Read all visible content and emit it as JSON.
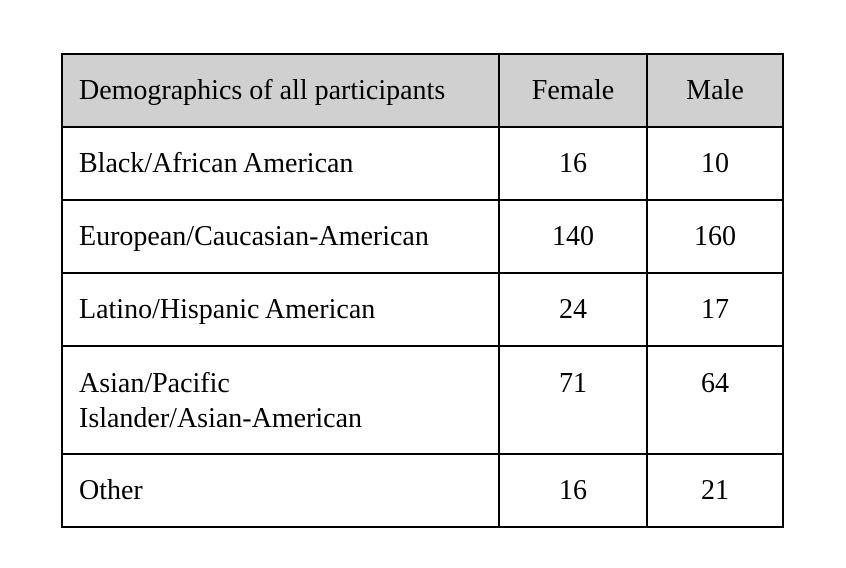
{
  "table": {
    "headers": [
      "Demographics of all participants",
      "Female",
      "Male"
    ],
    "rows": [
      {
        "label": "Black/African American",
        "female": "16",
        "male": "10"
      },
      {
        "label": "European/Caucasian-American",
        "female": "140",
        "male": "160"
      },
      {
        "label": "Latino/Hispanic American",
        "female": "24",
        "male": "17"
      },
      {
        "label_line1": "Asian/Pacific",
        "label_line2": "Islander/Asian-American",
        "female": "71",
        "male": "64"
      },
      {
        "label": "Other",
        "female": "16",
        "male": "21"
      }
    ],
    "header_bg": "#d0d0d0",
    "border_color": "#000000"
  }
}
